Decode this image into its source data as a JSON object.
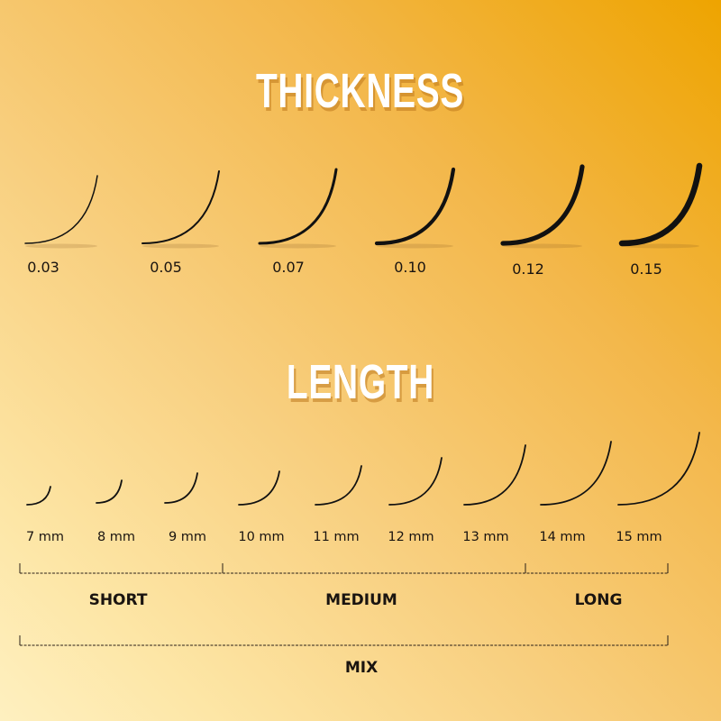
{
  "thickness": {
    "title": "THICKNESS",
    "values": [
      "0.03",
      "0.05",
      "0.07",
      "0.10",
      "0.12",
      "0.15"
    ]
  },
  "length": {
    "title": "LENGTH",
    "values": [
      "7 mm",
      "8 mm",
      "9 mm",
      "10 mm",
      "11 mm",
      "12 mm",
      "13 mm",
      "14 mm",
      "15 mm"
    ],
    "groups": {
      "short": "SHORT",
      "medium": "MEDIUM",
      "long": "LONG",
      "mix": "MIX"
    }
  },
  "colors": {
    "lash": "#111111",
    "title": "#ffffff",
    "accent": "#eea400"
  }
}
